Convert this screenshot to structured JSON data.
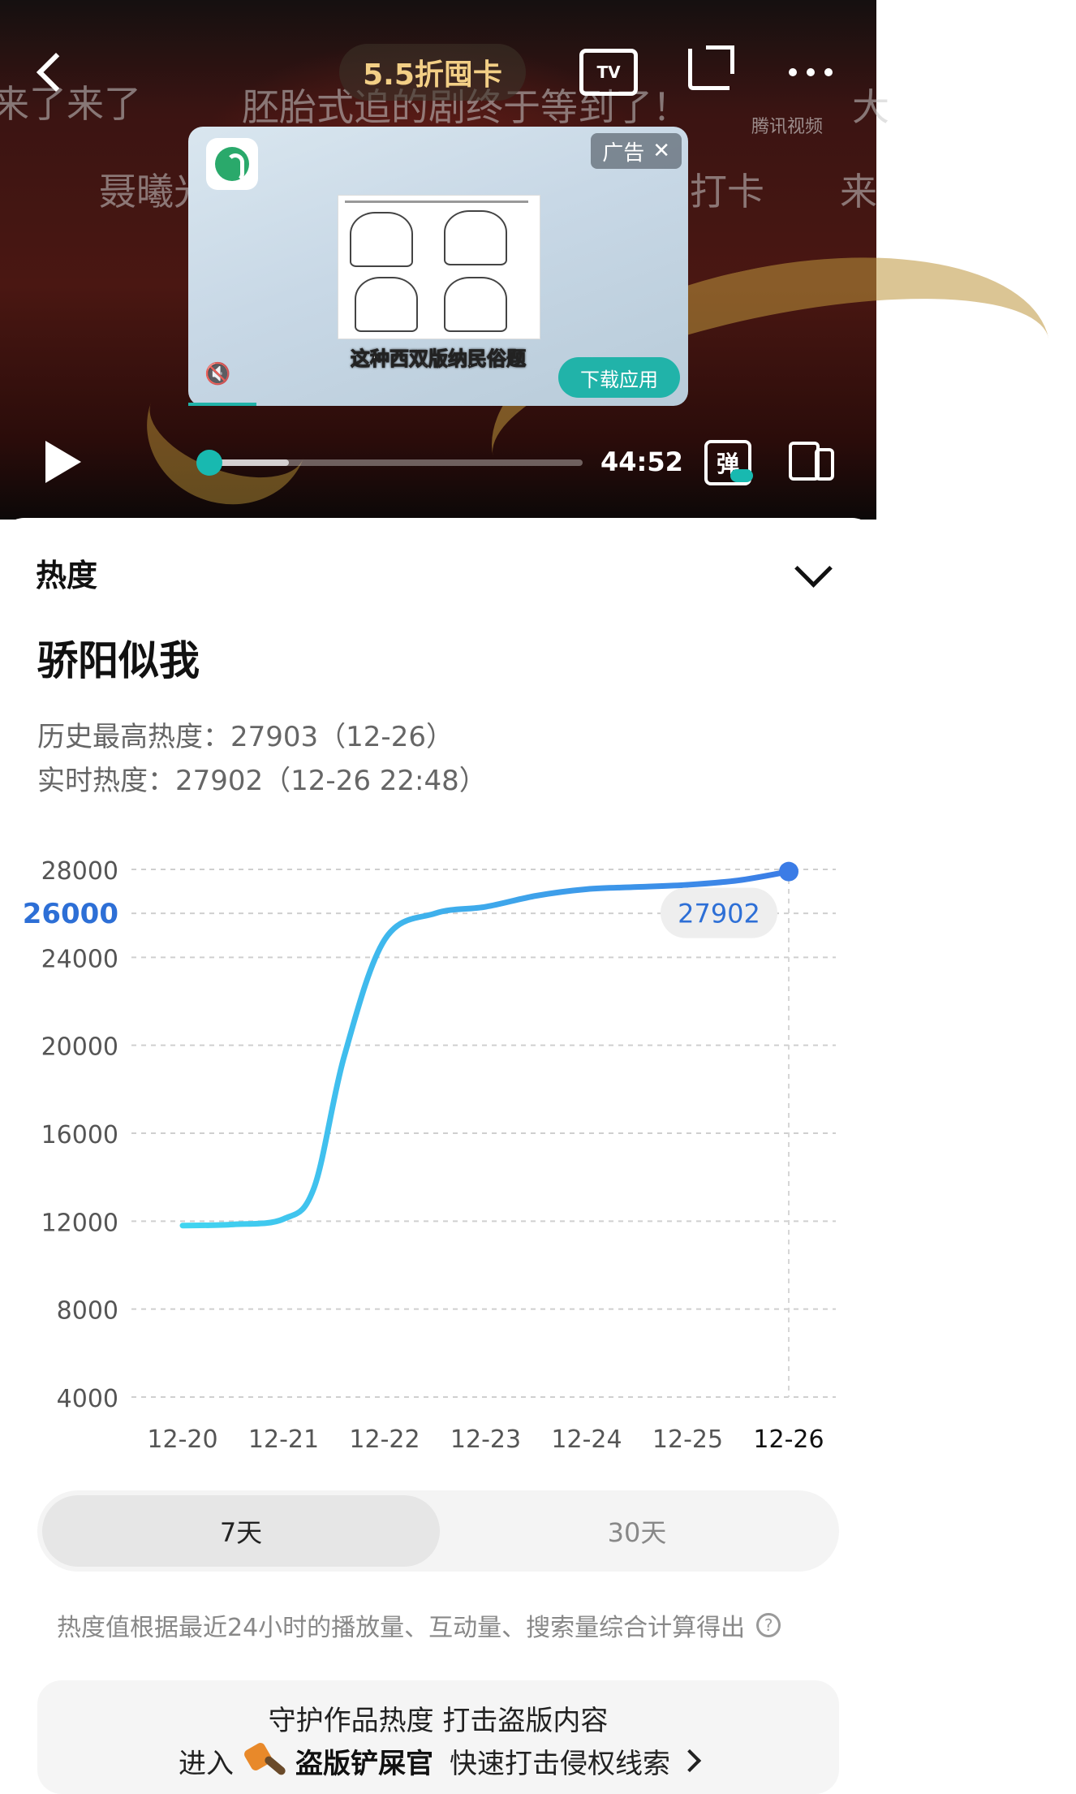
{
  "video": {
    "promo_label": "5.5折囤卡",
    "tv_label": "TV",
    "watermark": "腾讯视频",
    "danmaku": [
      "来了来了",
      "胚胎式追的剧终于等到了！",
      "大",
      "聂曦光",
      "打卡",
      "来"
    ],
    "ad": {
      "tag": "广告",
      "close": "✕",
      "caption": "这种西双版纳民俗题",
      "download_label": "下载应用",
      "mute_icon": "🔇"
    },
    "time": "44:52",
    "danmaku_toggle": "弹",
    "progress_fraction": 0.0
  },
  "panel": {
    "title": "热度",
    "show_title": "骄阳似我",
    "history_max": "历史最高热度：27903（12-26）",
    "realtime": "实时热度：27902（12-26 22:48）",
    "tabs": [
      {
        "label": "7天",
        "active": true
      },
      {
        "label": "30天",
        "active": false
      }
    ],
    "note": "热度值根据最近24小时的播放量、互动量、搜索量综合计算得出",
    "note_icon": "?",
    "promo": {
      "line1": "守护作品热度 打击盗版内容",
      "prefix": "进入",
      "brand": "盗版铲屎官",
      "suffix": "快速打击侵权线索"
    }
  },
  "colors": {
    "accent": "#18b9b0",
    "line_start": "#41d5f0",
    "line_end": "#3b7ce6",
    "highlight_label": "#2d6fd6"
  },
  "chart_data": {
    "type": "line",
    "categories": [
      "12-20",
      "12-21",
      "12-22",
      "12-23",
      "12-24",
      "12-25",
      "12-26"
    ],
    "y_ticks": [
      4000,
      8000,
      12000,
      16000,
      20000,
      24000,
      26000,
      28000
    ],
    "highlight_tick": 26000,
    "ylim": [
      4000,
      28000
    ],
    "series": [
      {
        "x": [
          0,
          0.5,
          1,
          1.3,
          1.6,
          2,
          2.5,
          3,
          3.5,
          4,
          4.5,
          5,
          5.5,
          6
        ],
        "values": [
          11800,
          11850,
          12100,
          13500,
          19500,
          24800,
          26000,
          26300,
          26800,
          27100,
          27200,
          27300,
          27500,
          27902
        ]
      }
    ],
    "current_value": "27902",
    "grid": true
  }
}
